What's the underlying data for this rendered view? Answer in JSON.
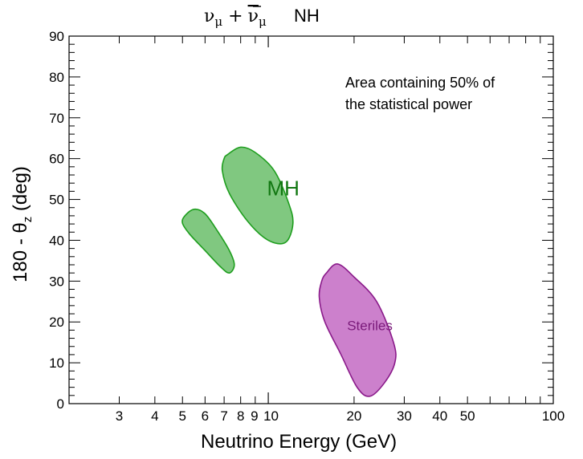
{
  "chart_data": {
    "type": "contour",
    "title": {
      "particle": "ν",
      "subscript": "μ",
      "plus": "+",
      "anti_particle": "ν",
      "anti_subscript": "μ",
      "hierarchy": "NH"
    },
    "xlabel": "Neutrino Energy (GeV)",
    "ylabel": {
      "prefix": "180 - θ",
      "subscript": "z",
      "suffix": " (deg)"
    },
    "xscale": "log",
    "xlim": [
      2,
      100
    ],
    "ylim": [
      0,
      90
    ],
    "x_ticks": [
      {
        "value": 3,
        "label": "3"
      },
      {
        "value": 4,
        "label": "4"
      },
      {
        "value": 5,
        "label": "5"
      },
      {
        "value": 6,
        "label": "6"
      },
      {
        "value": 7,
        "label": "7"
      },
      {
        "value": 8,
        "label": "8"
      },
      {
        "value": 9,
        "label": "9"
      },
      {
        "value": 10,
        "label": "10"
      },
      {
        "value": 20,
        "label": "20"
      },
      {
        "value": 30,
        "label": "30"
      },
      {
        "value": 40,
        "label": "40"
      },
      {
        "value": 50,
        "label": "50"
      },
      {
        "value": 100,
        "label": "100"
      }
    ],
    "y_ticks": [
      0,
      10,
      20,
      30,
      40,
      50,
      60,
      70,
      80,
      90
    ],
    "annotation": [
      "Area containing 50% of",
      "the statistical power"
    ],
    "regions": [
      {
        "name": "MH",
        "label": "MH",
        "show_label": true,
        "label_at": [
          9.9,
          51
        ],
        "fill": "#80c880",
        "stroke": "#1e9e1e",
        "label_color": "#117711",
        "points": [
          [
            7.2,
            61
          ],
          [
            8,
            62.8
          ],
          [
            9,
            61.5
          ],
          [
            10.5,
            57
          ],
          [
            11.8,
            49
          ],
          [
            12.2,
            44
          ],
          [
            11.5,
            39.5
          ],
          [
            10,
            40
          ],
          [
            8.5,
            44.5
          ],
          [
            7.3,
            51.5
          ],
          [
            6.9,
            57
          ],
          [
            7.0,
            60
          ]
        ]
      },
      {
        "name": "MH-low",
        "label": "",
        "show_label": false,
        "fill": "#80c880",
        "stroke": "#1e9e1e",
        "label_color": "#117711",
        "points": [
          [
            5.1,
            46
          ],
          [
            5.5,
            47.6
          ],
          [
            6.0,
            46.5
          ],
          [
            6.6,
            42.5
          ],
          [
            7.3,
            37.5
          ],
          [
            7.6,
            34
          ],
          [
            7.3,
            32
          ],
          [
            6.8,
            33.5
          ],
          [
            6.0,
            37.5
          ],
          [
            5.3,
            41.5
          ],
          [
            5.0,
            44.2
          ]
        ]
      },
      {
        "name": "Steriles",
        "label": "Steriles",
        "show_label": true,
        "label_at": [
          18.9,
          18
        ],
        "fill": "#cc80cc",
        "stroke": "#8a1a8a",
        "label_color": "#7a1a7a",
        "points": [
          [
            16,
            32
          ],
          [
            17.5,
            34.2
          ],
          [
            20,
            31
          ],
          [
            24,
            25
          ],
          [
            27.5,
            15
          ],
          [
            27.8,
            10
          ],
          [
            25.5,
            5
          ],
          [
            22.7,
            1.8
          ],
          [
            20.5,
            4
          ],
          [
            18,
            12
          ],
          [
            15.8,
            20
          ],
          [
            15.1,
            26
          ],
          [
            15.4,
            30
          ]
        ]
      }
    ]
  }
}
